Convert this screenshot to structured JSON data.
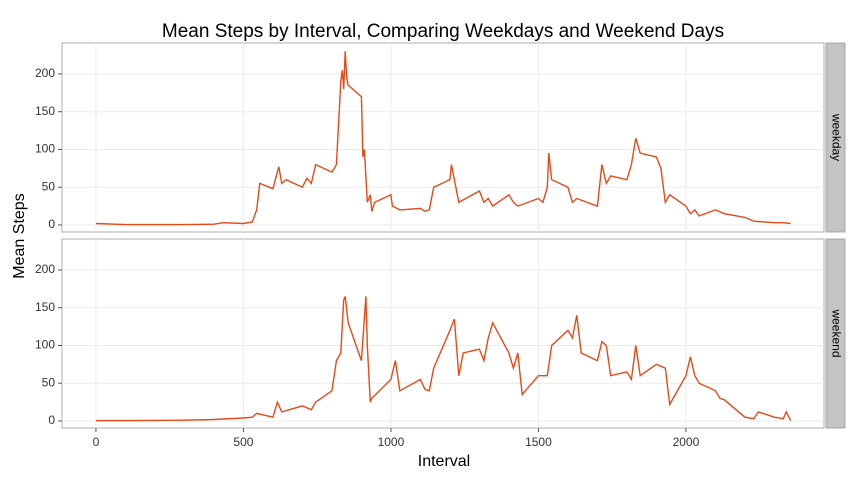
{
  "chart_data": {
    "type": "line",
    "title": "Mean Steps by Interval, Comparing Weekdays and Weekend Days",
    "x_label": "Interval",
    "y_label": "Mean Steps",
    "xlim": [
      -115,
      2468
    ],
    "xticks": [
      0,
      500,
      1000,
      1500,
      2000
    ],
    "ylim": [
      -9.3,
      241
    ],
    "yticks": [
      0,
      50,
      100,
      150,
      200
    ],
    "grid": true,
    "series": [
      {
        "name": "weekday",
        "color": "#e64a19",
        "x": [
          0,
          100,
          200,
          300,
          400,
          430,
          500,
          530,
          545,
          555,
          600,
          615,
          620,
          630,
          645,
          700,
          715,
          730,
          745,
          800,
          815,
          830,
          835,
          840,
          845,
          850,
          855,
          900,
          905,
          910,
          920,
          930,
          935,
          945,
          1000,
          1005,
          1030,
          1100,
          1115,
          1130,
          1145,
          1200,
          1205,
          1215,
          1230,
          1300,
          1315,
          1330,
          1345,
          1400,
          1415,
          1430,
          1500,
          1515,
          1530,
          1535,
          1545,
          1600,
          1615,
          1630,
          1700,
          1715,
          1730,
          1745,
          1800,
          1815,
          1830,
          1845,
          1900,
          1915,
          1930,
          1945,
          2000,
          2015,
          2030,
          2045,
          2100,
          2130,
          2200,
          2230,
          2300,
          2330,
          2355
        ],
        "values": [
          2,
          0.5,
          0.5,
          0.5,
          1,
          3,
          2,
          4,
          20,
          55,
          48,
          70,
          77,
          55,
          60,
          50,
          62,
          55,
          80,
          70,
          80,
          190,
          205,
          180,
          230,
          195,
          185,
          170,
          90,
          100,
          30,
          40,
          18,
          30,
          40,
          25,
          20,
          22,
          18,
          20,
          50,
          60,
          80,
          60,
          30,
          45,
          30,
          35,
          25,
          40,
          30,
          25,
          35,
          30,
          50,
          95,
          60,
          50,
          30,
          35,
          25,
          80,
          55,
          65,
          60,
          80,
          115,
          95,
          90,
          75,
          30,
          40,
          25,
          15,
          20,
          12,
          20,
          15,
          10,
          5,
          3,
          3,
          2
        ]
      },
      {
        "name": "weekend",
        "color": "#e64a19",
        "x": [
          0,
          100,
          300,
          400,
          500,
          530,
          545,
          600,
          615,
          630,
          700,
          730,
          745,
          800,
          815,
          830,
          840,
          845,
          855,
          900,
          915,
          920,
          930,
          935,
          1000,
          1015,
          1030,
          1100,
          1115,
          1130,
          1145,
          1200,
          1215,
          1230,
          1245,
          1300,
          1315,
          1330,
          1345,
          1400,
          1415,
          1430,
          1445,
          1500,
          1530,
          1545,
          1600,
          1615,
          1630,
          1645,
          1700,
          1715,
          1730,
          1745,
          1800,
          1815,
          1830,
          1845,
          1900,
          1930,
          1945,
          2000,
          2015,
          2030,
          2045,
          2100,
          2115,
          2130,
          2200,
          2230,
          2245,
          2300,
          2330,
          2340,
          2355
        ],
        "values": [
          0.5,
          0.5,
          1,
          2,
          4,
          5,
          10,
          5,
          25,
          12,
          20,
          15,
          25,
          40,
          80,
          90,
          160,
          165,
          130,
          80,
          165,
          100,
          25,
          30,
          55,
          80,
          40,
          55,
          42,
          40,
          70,
          120,
          135,
          60,
          90,
          95,
          80,
          110,
          130,
          90,
          70,
          90,
          35,
          60,
          60,
          100,
          120,
          110,
          140,
          90,
          80,
          105,
          100,
          60,
          65,
          55,
          100,
          60,
          75,
          70,
          22,
          60,
          85,
          60,
          50,
          40,
          30,
          28,
          5,
          3,
          12,
          5,
          3,
          12,
          0.5
        ]
      }
    ]
  }
}
